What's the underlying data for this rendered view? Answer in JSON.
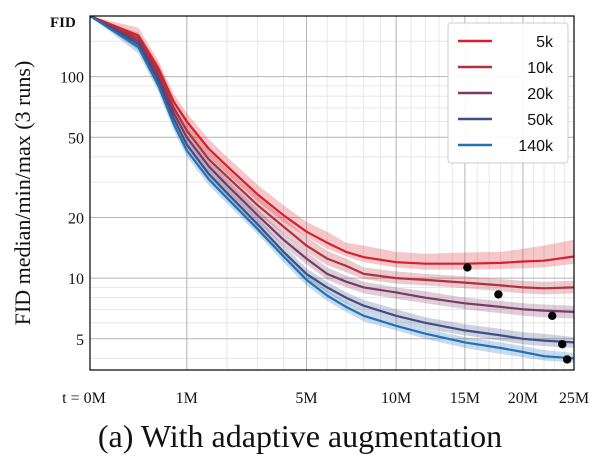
{
  "caption": "(a) With adaptive augmentation",
  "chart_data": {
    "type": "line",
    "title": "",
    "ylabel": "FID median/min/max (3 runs)",
    "xlabel": "",
    "corner_label": "FID",
    "x_unit": "M images",
    "x_scale": "sqrt",
    "y_scale": "log",
    "xlim": [
      0,
      25
    ],
    "ylim": [
      3.5,
      200
    ],
    "x_ticks": [
      {
        "value": 0,
        "label": "t = 0M"
      },
      {
        "value": 1,
        "label": "1M"
      },
      {
        "value": 5,
        "label": "5M"
      },
      {
        "value": 10,
        "label": "10M"
      },
      {
        "value": 15,
        "label": "15M"
      },
      {
        "value": 20,
        "label": "20M"
      },
      {
        "value": 25,
        "label": "25M"
      }
    ],
    "y_ticks": [
      {
        "value": 5,
        "label": "5"
      },
      {
        "value": 10,
        "label": "10"
      },
      {
        "value": 20,
        "label": "20"
      },
      {
        "value": 50,
        "label": "50"
      },
      {
        "value": 100,
        "label": "100"
      }
    ],
    "grid": true,
    "legend_position": "top-right",
    "series": [
      {
        "name": "5k",
        "color": "#d6202a",
        "x": [
          0,
          0.25,
          0.5,
          0.75,
          1,
          1.5,
          2,
          3,
          4,
          5,
          6,
          7,
          8,
          10,
          12,
          15,
          18,
          20,
          22,
          25
        ],
        "median": [
          200,
          160,
          110,
          75,
          60,
          44,
          36,
          26,
          20.5,
          17,
          15,
          13.5,
          12.7,
          12,
          11.8,
          11.8,
          11.9,
          12.1,
          12.2,
          12.8
        ],
        "min": [
          200,
          150,
          100,
          68,
          54,
          40,
          33,
          24,
          19,
          16,
          14,
          12.8,
          12,
          11.3,
          11,
          11,
          11.1,
          11.2,
          11.3,
          11.8
        ],
        "max": [
          200,
          175,
          120,
          82,
          66,
          49,
          40,
          29,
          23,
          19,
          17,
          15,
          14.5,
          13.5,
          13.2,
          13.4,
          13.5,
          14,
          14.5,
          15.5
        ],
        "best": {
          "x": 15.2,
          "y": 11.3
        }
      },
      {
        "name": "10k",
        "color": "#b3303e",
        "x": [
          0,
          0.25,
          0.5,
          0.75,
          1,
          1.5,
          2,
          3,
          4,
          5,
          6,
          7,
          8,
          10,
          12,
          15,
          18,
          20,
          22,
          25
        ],
        "median": [
          200,
          155,
          105,
          70,
          54,
          39,
          32,
          23,
          18,
          14.5,
          12.5,
          11.5,
          10.5,
          10,
          9.8,
          9.5,
          9.2,
          9,
          8.9,
          9
        ],
        "min": [
          200,
          145,
          95,
          64,
          49,
          36,
          29,
          21,
          16.5,
          13.5,
          11.6,
          10.7,
          9.9,
          9.4,
          9.2,
          8.9,
          8.6,
          8.4,
          8.3,
          8.4
        ],
        "max": [
          200,
          165,
          115,
          77,
          60,
          43,
          35,
          25.5,
          20,
          16,
          13.7,
          12.5,
          11.3,
          10.8,
          10.5,
          10.2,
          9.9,
          9.7,
          9.6,
          9.7
        ],
        "best": {
          "x": 17.8,
          "y": 8.3
        }
      },
      {
        "name": "20k",
        "color": "#7a3a65",
        "x": [
          0,
          0.25,
          0.5,
          0.75,
          1,
          1.5,
          2,
          3,
          4,
          5,
          6,
          7,
          8,
          10,
          12,
          15,
          18,
          20,
          22,
          25
        ],
        "median": [
          200,
          150,
          100,
          66,
          50,
          36,
          29,
          20.5,
          15.5,
          12.5,
          10.5,
          9.6,
          9,
          8.5,
          8,
          7.5,
          7.2,
          7,
          6.9,
          6.8
        ],
        "min": [
          200,
          140,
          92,
          61,
          46,
          33,
          27,
          19,
          14.4,
          11.7,
          9.8,
          9,
          8.4,
          7.9,
          7.5,
          7,
          6.7,
          6.5,
          6.4,
          6.3
        ],
        "max": [
          200,
          160,
          108,
          72,
          55,
          39,
          31,
          22,
          16.6,
          13.5,
          11.3,
          10.3,
          9.6,
          9,
          8.6,
          8,
          7.7,
          7.5,
          7.4,
          7.3
        ],
        "best": {
          "x": 22.8,
          "y": 6.5
        }
      },
      {
        "name": "50k",
        "color": "#3f4f85",
        "x": [
          0,
          0.25,
          0.5,
          0.75,
          1,
          1.5,
          2,
          3,
          4,
          5,
          6,
          7,
          8,
          10,
          12,
          15,
          18,
          20,
          22,
          25
        ],
        "median": [
          200,
          145,
          95,
          62,
          46,
          33,
          26.5,
          18.5,
          13.5,
          10.5,
          9,
          8,
          7.3,
          6.5,
          6,
          5.5,
          5.2,
          5,
          4.9,
          4.8
        ],
        "min": [
          200,
          135,
          88,
          58,
          43,
          31,
          25,
          17.3,
          12.7,
          9.9,
          8.5,
          7.5,
          6.9,
          6.1,
          5.6,
          5.2,
          4.9,
          4.7,
          4.6,
          4.5
        ],
        "max": [
          200,
          155,
          102,
          67,
          50,
          36,
          28.5,
          20,
          14.5,
          11.2,
          9.6,
          8.5,
          7.8,
          7,
          6.4,
          5.9,
          5.6,
          5.4,
          5.3,
          5.1
        ],
        "best": {
          "x": 23.8,
          "y": 4.7
        }
      },
      {
        "name": "140k",
        "color": "#2271b5",
        "x": [
          0,
          0.25,
          0.5,
          0.75,
          1,
          1.5,
          2,
          3,
          4,
          5,
          6,
          7,
          8,
          10,
          12,
          15,
          18,
          20,
          22,
          25
        ],
        "median": [
          200,
          140,
          90,
          58,
          43,
          31,
          25,
          17.5,
          12.8,
          9.8,
          8.2,
          7.2,
          6.5,
          5.8,
          5.3,
          4.8,
          4.5,
          4.3,
          4.1,
          4
        ],
        "min": [
          200,
          130,
          84,
          54,
          40,
          29,
          23.5,
          16.5,
          12,
          9.2,
          7.7,
          6.8,
          6.1,
          5.5,
          5,
          4.5,
          4.2,
          4.05,
          3.9,
          3.8
        ],
        "max": [
          200,
          150,
          96,
          62,
          46,
          33,
          26.5,
          18.5,
          13.6,
          10.4,
          8.7,
          7.6,
          6.9,
          6.1,
          5.6,
          5.1,
          4.8,
          4.6,
          4.4,
          4.25
        ],
        "best": {
          "x": 24.3,
          "y": 3.95
        }
      }
    ]
  }
}
